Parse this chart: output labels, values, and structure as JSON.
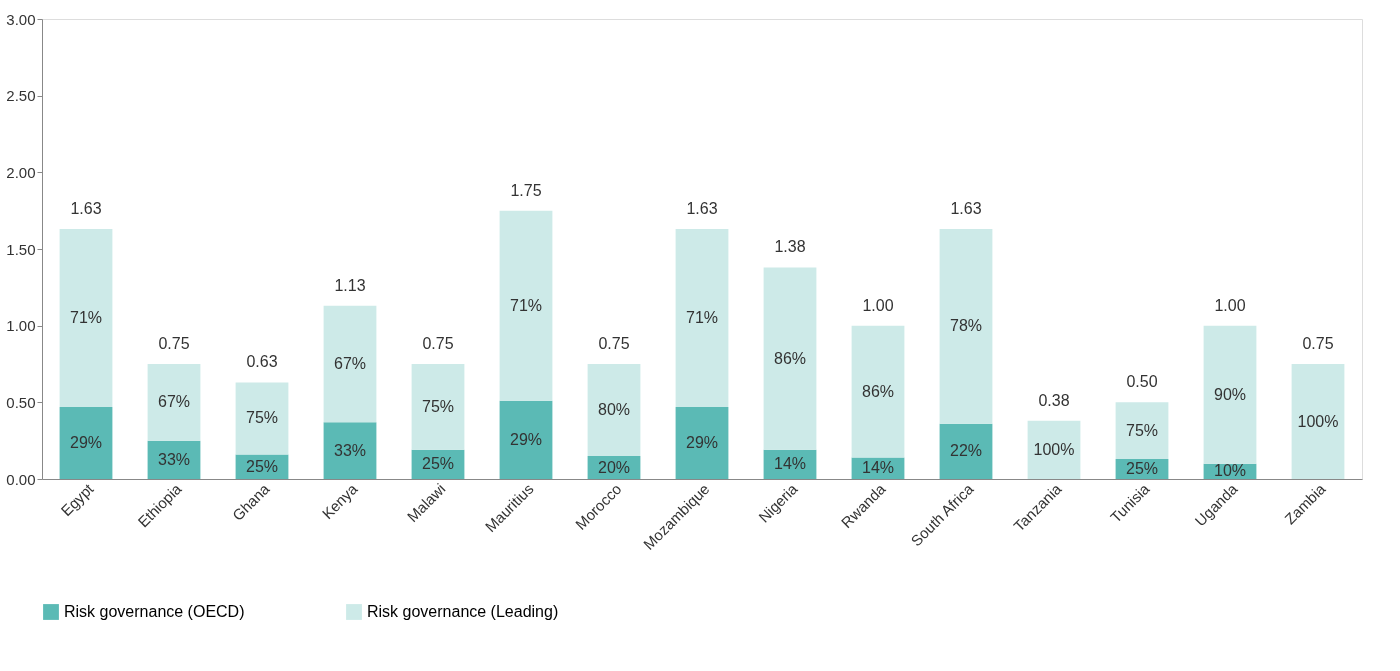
{
  "chart_data": {
    "type": "bar",
    "stacked": true,
    "categories": [
      "Egypt",
      "Ethiopia",
      "Ghana",
      "Kenya",
      "Malawi",
      "Mauritius",
      "Morocco",
      "Mozambique",
      "Nigeria",
      "Rwanda",
      "South Africa",
      "Tanzania",
      "Tunisia",
      "Uganda",
      "Zambia"
    ],
    "series": [
      {
        "name": "Risk governance (OECD)",
        "color": "#5bbab5",
        "values": [
          0.47,
          0.25,
          0.16,
          0.37,
          0.19,
          0.51,
          0.15,
          0.47,
          0.19,
          0.14,
          0.36,
          0,
          0.13,
          0.1,
          0
        ]
      },
      {
        "name": "Risk governance (Leading)",
        "color": "#cdeae8",
        "values": [
          1.16,
          0.5,
          0.47,
          0.76,
          0.56,
          1.24,
          0.6,
          1.16,
          1.19,
          0.86,
          1.27,
          0.38,
          0.37,
          0.9,
          0.75
        ]
      }
    ],
    "annotations": [
      "29%",
      "71%",
      "33%",
      "67%",
      "25%",
      "75%",
      "33%",
      "67%",
      "25%",
      "75%",
      "29%",
      "71%",
      "20%",
      "80%",
      "29%",
      "71%",
      "14%",
      "86%",
      "14%",
      "86%",
      "22%",
      "78%",
      "100%",
      "25%",
      "75%",
      "10%",
      "90%",
      "100%"
    ],
    "totals": [
      "1.63",
      "0.75",
      "0.63",
      "1.13",
      "0.75",
      "1.75",
      "0.75",
      "1.63",
      "1.38",
      "1.00",
      "1.63",
      "0.38",
      "0.50",
      "1.00",
      "0.75"
    ],
    "ylim": [
      0,
      3
    ],
    "yticks": [
      {
        "value": 0,
        "label": "0.00"
      },
      {
        "value": 0.5,
        "label": "0.50"
      },
      {
        "value": 1,
        "label": "1.00"
      },
      {
        "value": 1.5,
        "label": "1.50"
      },
      {
        "value": 2,
        "label": "2.00"
      },
      {
        "value": 2.5,
        "label": "2.50"
      },
      {
        "value": 3,
        "label": "3.00"
      }
    ],
    "grid": false,
    "legend": "bottom"
  }
}
